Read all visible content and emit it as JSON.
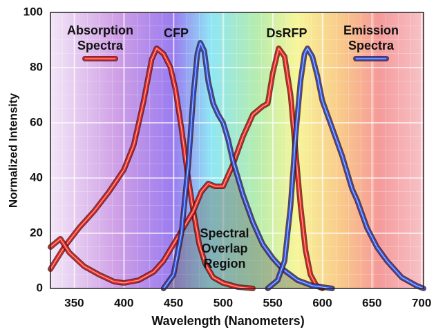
{
  "chart_data": {
    "type": "line",
    "x_label": "Wavelength (Nanometers)",
    "y_label": "Normalized Intensity",
    "xlim": [
      326,
      702
    ],
    "ylim": [
      0,
      100
    ],
    "xticks": [
      350,
      400,
      450,
      500,
      550,
      600,
      650,
      700
    ],
    "yticks": [
      0,
      20,
      40,
      60,
      80,
      100
    ],
    "grid": true,
    "annotations": [
      "CFP",
      "DsRFP",
      "Spectral Overlap Region"
    ],
    "series": [
      {
        "name": "Absorption Spectra",
        "color": "#e8231c",
        "x": [
          326,
          340,
          355,
          370,
          385,
          400,
          410,
          420,
          428,
          433,
          440,
          447,
          452,
          458,
          464,
          470,
          476,
          482,
          490,
          500,
          515,
          530
        ],
        "values": [
          7,
          15,
          22,
          28,
          35,
          43,
          52,
          68,
          83,
          87,
          85,
          80,
          72,
          58,
          42,
          28,
          16,
          9,
          4,
          2,
          0.5,
          0
        ]
      },
      {
        "color": "#e8231c",
        "x": [
          326,
          336,
          345,
          360,
          375,
          390,
          400,
          415,
          430,
          440,
          450,
          460,
          470,
          478,
          485,
          492,
          500,
          510,
          520,
          530,
          540,
          545,
          550,
          556,
          562,
          568,
          573,
          578,
          583,
          588,
          594,
          600
        ],
        "values": [
          15,
          18,
          13,
          8,
          5,
          2.5,
          2,
          3,
          6,
          10,
          16,
          22,
          28,
          35,
          38,
          37,
          37,
          45,
          55,
          63,
          66,
          67,
          78,
          87,
          84,
          70,
          50,
          30,
          14,
          5,
          1,
          0
        ]
      },
      {
        "name": "Emission Spectra",
        "color": "#2a4fd8",
        "x": [
          440,
          450,
          458,
          465,
          470,
          474,
          477,
          481,
          485,
          490,
          495,
          500,
          505,
          510,
          520,
          530,
          540,
          550,
          560,
          575,
          590,
          610
        ],
        "values": [
          0,
          5,
          20,
          45,
          70,
          85,
          89,
          86,
          75,
          67,
          63,
          60,
          54,
          46,
          34,
          24,
          16,
          11,
          7,
          3,
          1,
          0
        ]
      },
      {
        "color": "#2a4fd8",
        "x": [
          545,
          555,
          562,
          568,
          573,
          578,
          582,
          585,
          590,
          595,
          600,
          610,
          620,
          630,
          635,
          645,
          655,
          665,
          680,
          695,
          702
        ],
        "values": [
          0,
          3,
          10,
          30,
          55,
          75,
          85,
          87,
          84,
          77,
          68,
          58,
          48,
          36,
          32,
          22,
          15,
          10,
          4,
          1,
          0
        ]
      }
    ]
  }
}
